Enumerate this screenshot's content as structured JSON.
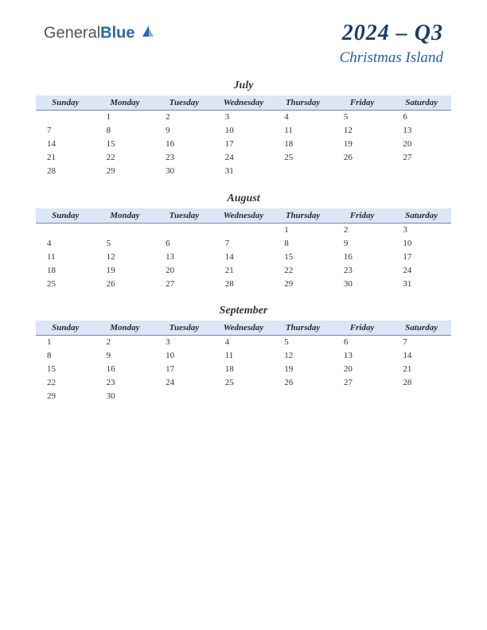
{
  "logo": {
    "part1": "General",
    "part2": "Blue"
  },
  "header": {
    "title": "2024 – Q3",
    "subtitle": "Christmas Island"
  },
  "styling": {
    "page_bg": "#ffffff",
    "header_row_bg": "#dce6f4",
    "header_row_border": "#6a88b8",
    "title_color": "#1a3d6d",
    "subtitle_color": "#2560a8",
    "day_header_fontsize": 11,
    "cell_fontsize": 11,
    "month_name_fontsize": 14,
    "title_fontsize": 28,
    "subtitle_fontsize": 19
  },
  "day_headers": [
    "Sunday",
    "Monday",
    "Tuesday",
    "Wednesday",
    "Thursday",
    "Friday",
    "Saturday"
  ],
  "months": [
    {
      "name": "July",
      "weeks": [
        [
          "",
          "1",
          "2",
          "3",
          "4",
          "5",
          "6"
        ],
        [
          "7",
          "8",
          "9",
          "10",
          "11",
          "12",
          "13"
        ],
        [
          "14",
          "15",
          "16",
          "17",
          "18",
          "19",
          "20"
        ],
        [
          "21",
          "22",
          "23",
          "24",
          "25",
          "26",
          "27"
        ],
        [
          "28",
          "29",
          "30",
          "31",
          "",
          "",
          ""
        ]
      ]
    },
    {
      "name": "August",
      "weeks": [
        [
          "",
          "",
          "",
          "",
          "1",
          "2",
          "3"
        ],
        [
          "4",
          "5",
          "6",
          "7",
          "8",
          "9",
          "10"
        ],
        [
          "11",
          "12",
          "13",
          "14",
          "15",
          "16",
          "17"
        ],
        [
          "18",
          "19",
          "20",
          "21",
          "22",
          "23",
          "24"
        ],
        [
          "25",
          "26",
          "27",
          "28",
          "29",
          "30",
          "31"
        ]
      ]
    },
    {
      "name": "September",
      "weeks": [
        [
          "1",
          "2",
          "3",
          "4",
          "5",
          "6",
          "7"
        ],
        [
          "8",
          "9",
          "10",
          "11",
          "12",
          "13",
          "14"
        ],
        [
          "15",
          "16",
          "17",
          "18",
          "19",
          "20",
          "21"
        ],
        [
          "22",
          "23",
          "24",
          "25",
          "26",
          "27",
          "28"
        ],
        [
          "29",
          "30",
          "",
          "",
          "",
          "",
          ""
        ]
      ]
    }
  ]
}
